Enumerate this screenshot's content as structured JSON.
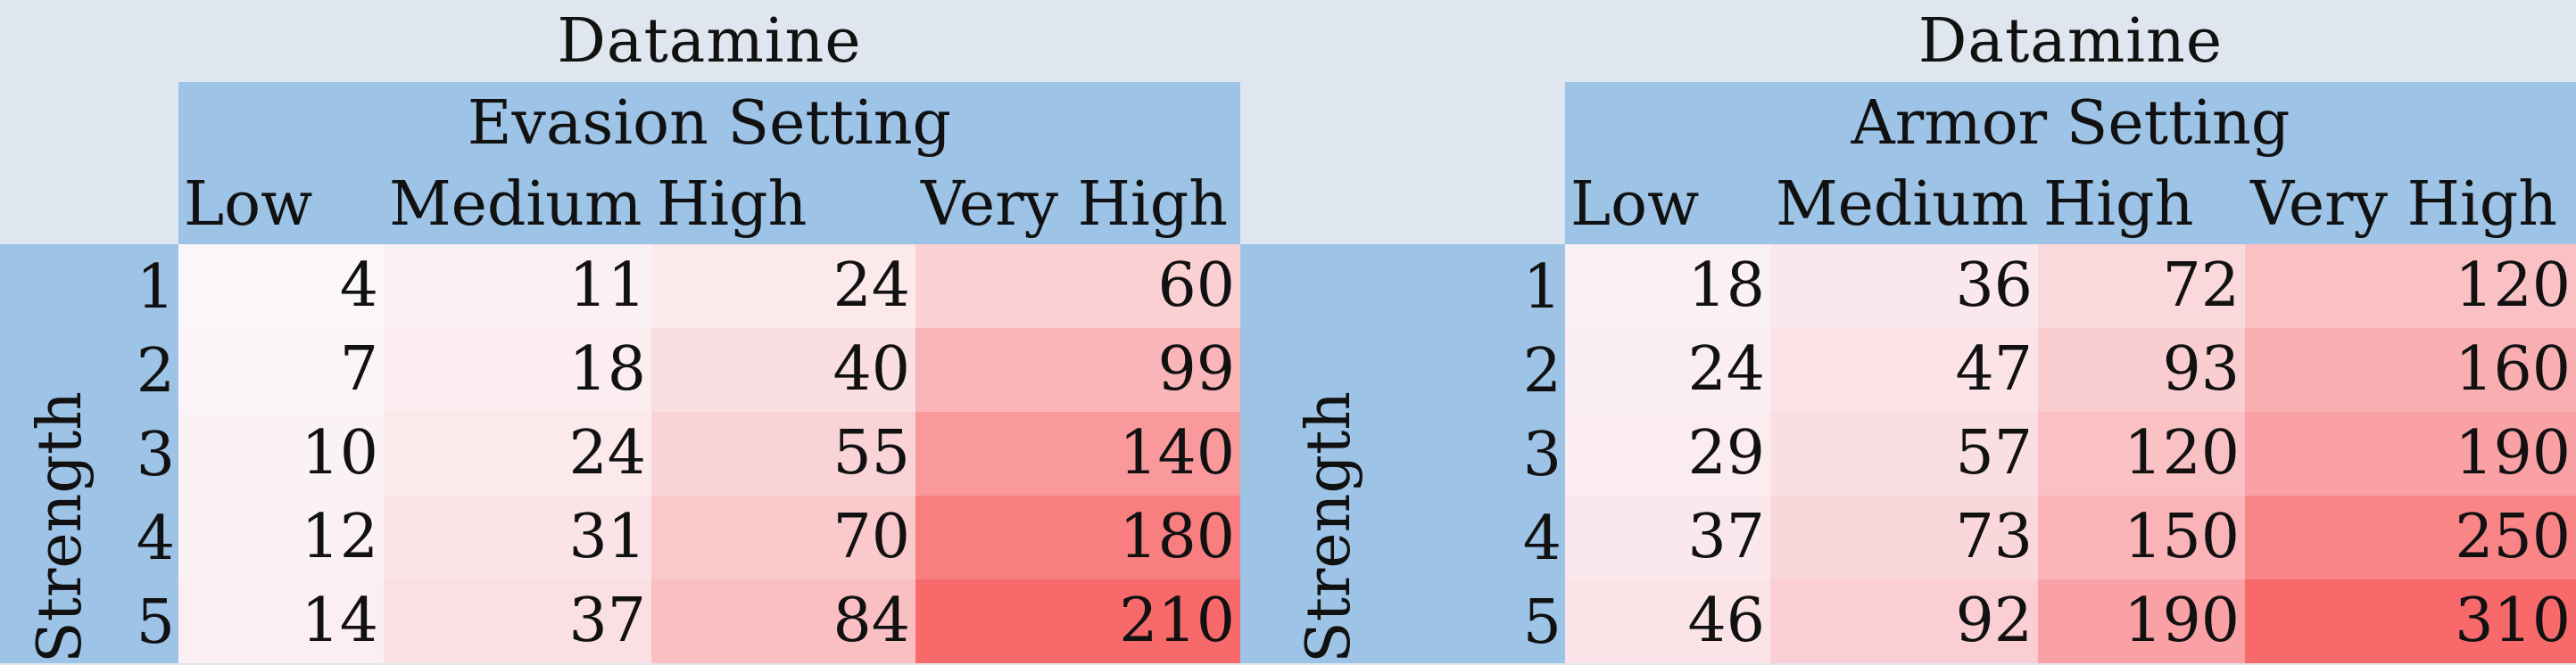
{
  "tables": [
    {
      "title": "Datamine",
      "setting": "Evasion Setting",
      "row_axis_label": "Strength",
      "columns": [
        "Low",
        "Medium",
        "High",
        "Very High"
      ],
      "rows": [
        "1",
        "2",
        "3",
        "4",
        "5"
      ],
      "values": [
        [
          4,
          11,
          24,
          60
        ],
        [
          7,
          18,
          40,
          99
        ],
        [
          10,
          24,
          55,
          140
        ],
        [
          12,
          31,
          70,
          180
        ],
        [
          14,
          37,
          84,
          210
        ]
      ],
      "max_value": 210
    },
    {
      "title": "Datamine",
      "setting": "Armor Setting",
      "row_axis_label": "Strength",
      "columns": [
        "Low",
        "Medium",
        "High",
        "Very High"
      ],
      "rows": [
        "1",
        "2",
        "3",
        "4",
        "5"
      ],
      "values": [
        [
          18,
          36,
          72,
          120
        ],
        [
          24,
          47,
          93,
          160
        ],
        [
          29,
          57,
          120,
          190
        ],
        [
          37,
          73,
          150,
          250
        ],
        [
          46,
          92,
          190,
          310
        ]
      ],
      "max_value": 310
    }
  ],
  "colors": {
    "background": "#dfe6ef",
    "header": "#9dc3e6",
    "heat_low": "#fbf9fd",
    "heat_high": "#f8696b"
  }
}
